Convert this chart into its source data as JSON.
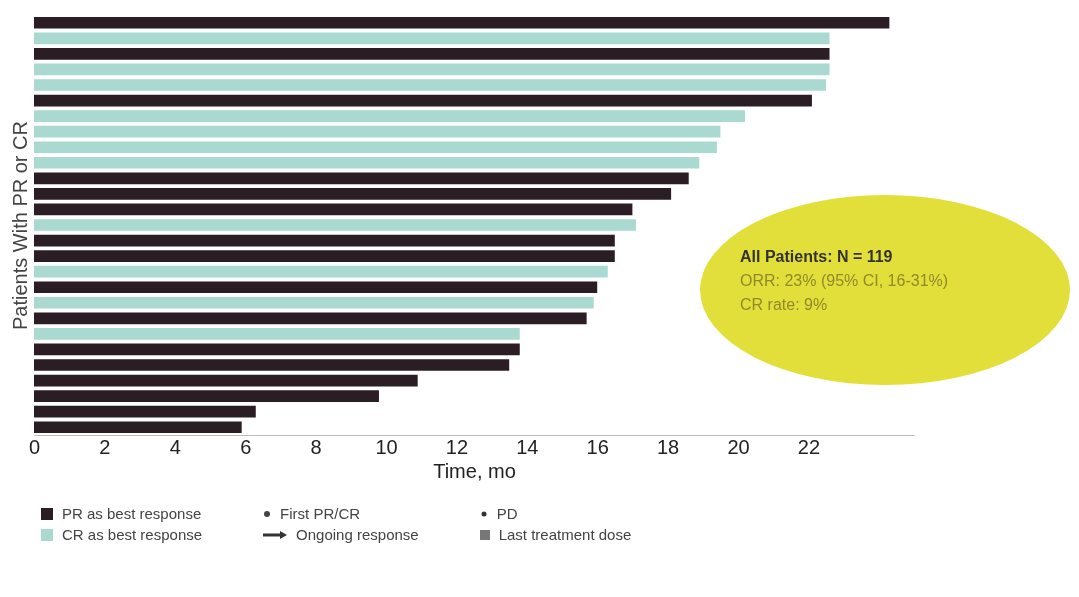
{
  "chart_data": {
    "type": "bar",
    "orientation": "horizontal",
    "xlabel": "Time, mo",
    "ylabel": "Patients With PR or CR",
    "categories": [
      null,
      null,
      null,
      null,
      null,
      null,
      null,
      null,
      null,
      null,
      null,
      null,
      null,
      null,
      null,
      null,
      null,
      null,
      null,
      null,
      null,
      null,
      null,
      null,
      null,
      null,
      null
    ],
    "values": [
      24.3,
      22.6,
      22.6,
      22.6,
      22.5,
      22.1,
      20.2,
      19.5,
      19.4,
      18.9,
      18.6,
      18.1,
      17.0,
      17.1,
      16.5,
      16.5,
      16.3,
      16.0,
      15.9,
      15.7,
      13.8,
      13.8,
      13.5,
      10.9,
      9.8,
      6.3,
      5.9
    ],
    "colors": [
      "#2b1d24",
      "#a9d9d1",
      "#2b1d24",
      "#a9d9d1",
      "#a9d9d1",
      "#2b1d24",
      "#a9d9d1",
      "#a9d9d1",
      "#a9d9d1",
      "#a9d9d1",
      "#2b1d24",
      "#2b1d24",
      "#2b1d24",
      "#a9d9d1",
      "#2b1d24",
      "#2b1d24",
      "#a9d9d1",
      "#2b1d24",
      "#a9d9d1",
      "#2b1d24",
      "#a9d9d1",
      "#2b1d24",
      "#2b1d24",
      "#2b1d24",
      "#2b1d24",
      "#2b1d24",
      "#2b1d24"
    ],
    "xlim": [
      0,
      25
    ],
    "xticks": [
      0,
      2,
      4,
      6,
      8,
      10,
      12,
      14,
      16,
      18,
      20,
      22
    ],
    "grid": false,
    "tick_labels": "x",
    "annotations": [
      "All Patients: N = 119",
      "ORR: 23% (95% CI, 16-31%)",
      "CR rate: 9%",
      "PR as best response",
      "CR as best response",
      "First PR/CR",
      "Ongoing response",
      "PD",
      "Last treatment dose"
    ]
  }
}
